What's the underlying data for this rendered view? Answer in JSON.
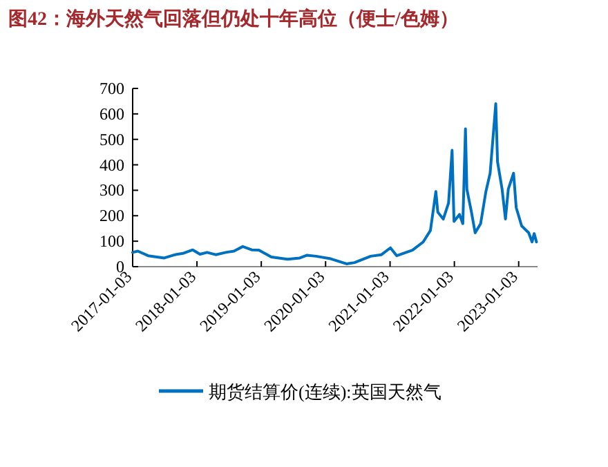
{
  "chart_data": {
    "type": "line",
    "title": "图42：海外天然气回落但仍处十年高位（便士/色姆）",
    "x": [
      "2017-01-03",
      "2017-02-01",
      "2017-04-01",
      "2017-07-01",
      "2017-09-01",
      "2017-10-15",
      "2017-12-10",
      "2018-01-20",
      "2018-03-01",
      "2018-04-20",
      "2018-06-15",
      "2018-08-01",
      "2018-09-20",
      "2018-11-10",
      "2018-12-20",
      "2019-03-01",
      "2019-06-01",
      "2019-08-10",
      "2019-09-20",
      "2019-11-10",
      "2020-02-01",
      "2020-05-01",
      "2020-06-15",
      "2020-09-15",
      "2020-11-15",
      "2021-01-05",
      "2021-02-10",
      "2021-05-10",
      "2021-07-10",
      "2021-08-20",
      "2021-09-20",
      "2021-10-01",
      "2021-11-01",
      "2021-12-01",
      "2021-12-21",
      "2022-01-01",
      "2022-02-01",
      "2022-02-20",
      "2022-03-07",
      "2022-03-15",
      "2022-04-10",
      "2022-05-01",
      "2022-06-01",
      "2022-07-01",
      "2022-07-25",
      "2022-08-26",
      "2022-09-05",
      "2022-10-01",
      "2022-10-20",
      "2022-11-05",
      "2022-12-05",
      "2022-12-20",
      "2023-01-20",
      "2023-03-01",
      "2023-03-20",
      "2023-04-01",
      "2023-04-14"
    ],
    "series": [
      {
        "name": "期货结算价(连续):英国天然气",
        "color": "#0070c0",
        "values": [
          56,
          61,
          43,
          34,
          47,
          52,
          66,
          49,
          56,
          47,
          56,
          61,
          79,
          66,
          65,
          38,
          29,
          34,
          45,
          41,
          31,
          11,
          16,
          41,
          47,
          74,
          43,
          65,
          97,
          142,
          295,
          214,
          187,
          250,
          457,
          178,
          205,
          169,
          541,
          304,
          214,
          133,
          169,
          295,
          367,
          640,
          412,
          304,
          187,
          304,
          367,
          232,
          160,
          133,
          97,
          130,
          97
        ]
      }
    ],
    "xlim": [
      "2017-01-03",
      "2023-04-20"
    ],
    "xticks": [
      "2017-01-03",
      "2018-01-03",
      "2019-01-03",
      "2020-01-03",
      "2021-01-03",
      "2022-01-03",
      "2023-01-03"
    ],
    "ylim": [
      0,
      700
    ],
    "yticks": [
      0,
      100,
      200,
      300,
      400,
      500,
      600,
      700
    ],
    "legend": "bottom",
    "grid": false
  }
}
